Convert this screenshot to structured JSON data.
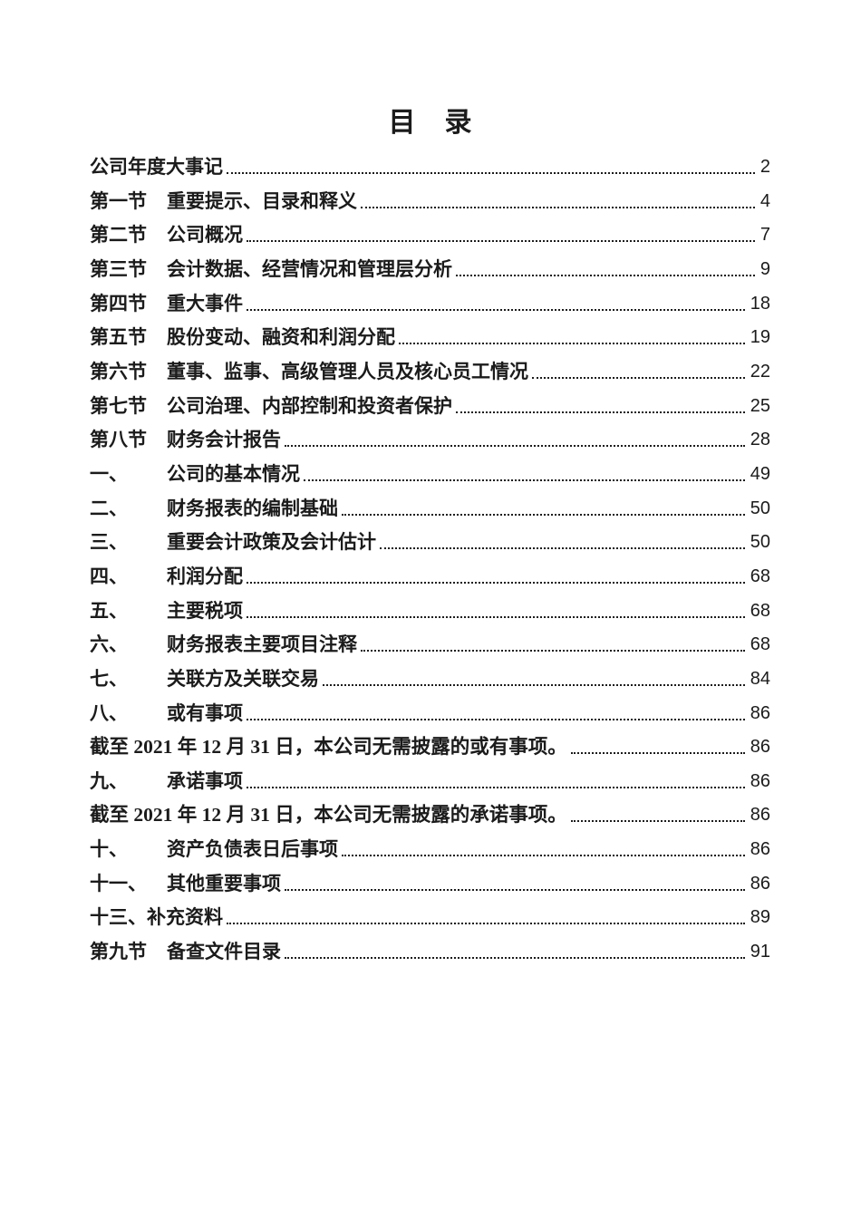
{
  "page": {
    "title": "目　录"
  },
  "colors": {
    "text": "#1b1b1b",
    "background": "#ffffff",
    "leader_dots": "#1c1c1c"
  },
  "toc": {
    "entries": [
      {
        "label": "",
        "title": "公司年度大事记",
        "page": "2"
      },
      {
        "label": "第一节",
        "title": "重要提示、目录和释义",
        "page": "4"
      },
      {
        "label": "第二节",
        "title": "公司概况",
        "page": "7"
      },
      {
        "label": "第三节",
        "title": "会计数据、经营情况和管理层分析",
        "page": "9"
      },
      {
        "label": "第四节",
        "title": "重大事件",
        "page": "18"
      },
      {
        "label": "第五节",
        "title": "股份变动、融资和利润分配",
        "page": "19"
      },
      {
        "label": "第六节",
        "title": "董事、监事、高级管理人员及核心员工情况",
        "page": "22"
      },
      {
        "label": "第七节",
        "title": "公司治理、内部控制和投资者保护",
        "page": "25"
      },
      {
        "label": "第八节",
        "title": "财务会计报告",
        "page": "28"
      },
      {
        "label": "一、",
        "title": "公司的基本情况",
        "page": "49"
      },
      {
        "label": "二、",
        "title": "财务报表的编制基础",
        "page": "50"
      },
      {
        "label": "三、",
        "title": "重要会计政策及会计估计",
        "page": "50"
      },
      {
        "label": "四、",
        "title": "利润分配",
        "page": "68"
      },
      {
        "label": "五、",
        "title": "主要税项",
        "page": "68"
      },
      {
        "label": "六、",
        "title": "财务报表主要项目注释",
        "page": "68"
      },
      {
        "label": "七、",
        "title": "关联方及关联交易",
        "page": "84"
      },
      {
        "label": "八、",
        "title": "或有事项",
        "page": "86"
      },
      {
        "label": "",
        "title": "截至 2021 年 12 月 31 日，本公司无需披露的或有事项。",
        "page": "86",
        "serif": true
      },
      {
        "label": "九、",
        "title": "承诺事项",
        "page": "86"
      },
      {
        "label": "",
        "title": "截至 2021 年 12 月 31 日，本公司无需披露的承诺事项。",
        "page": "86",
        "serif": true
      },
      {
        "label": "十、",
        "title": "资产负债表日后事项",
        "page": "86"
      },
      {
        "label": "十一、",
        "title": "其他重要事项",
        "page": "86"
      },
      {
        "label": "",
        "title": "十三、补充资料",
        "page": "89"
      },
      {
        "label": "第九节",
        "title": "备查文件目录",
        "page": "91"
      }
    ]
  }
}
